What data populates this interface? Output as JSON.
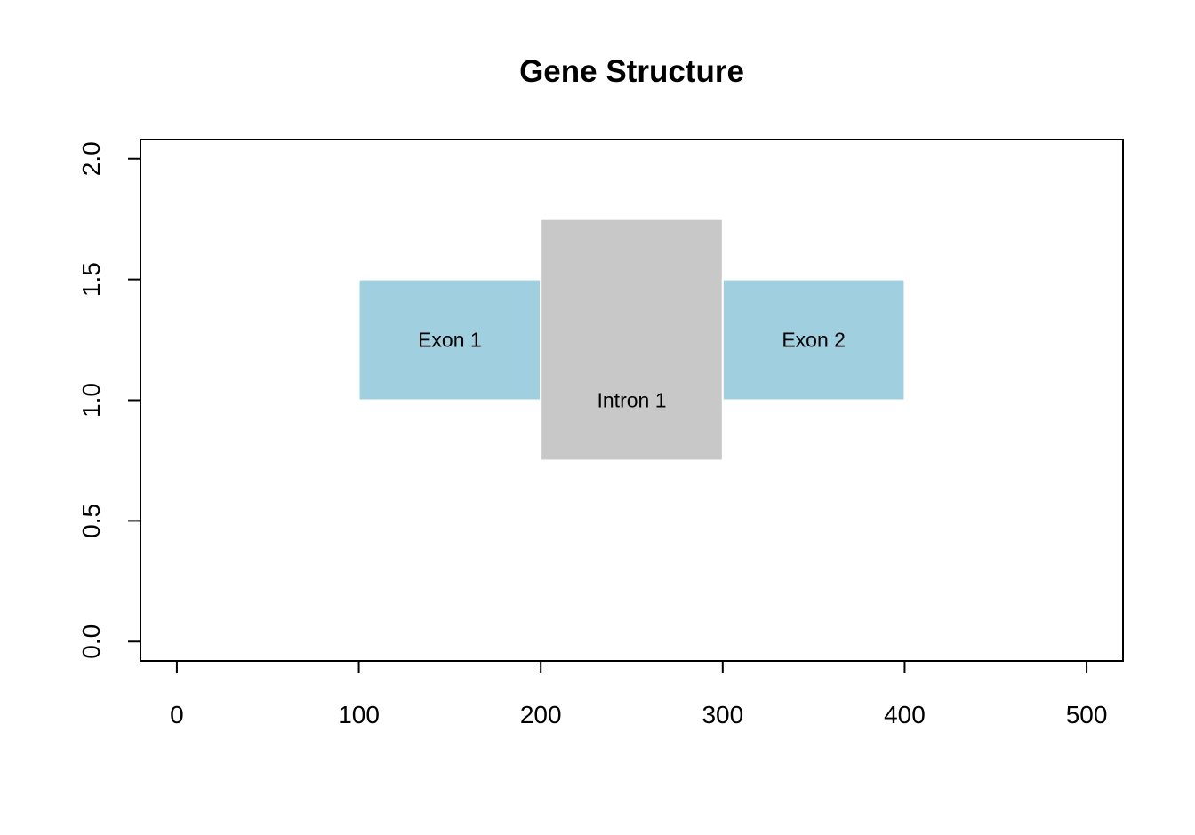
{
  "chart_data": {
    "type": "bar",
    "title": "Gene Structure",
    "xlabel": "",
    "ylabel": "",
    "xlim": [
      -20,
      520
    ],
    "ylim": [
      -0.08,
      2.08
    ],
    "x_ticks": [
      0,
      100,
      200,
      300,
      400,
      500
    ],
    "y_ticks": [
      0.0,
      0.5,
      1.0,
      1.5,
      2.0
    ],
    "x_tick_labels": [
      "0",
      "100",
      "200",
      "300",
      "400",
      "500"
    ],
    "y_tick_labels": [
      "0.0",
      "0.5",
      "1.0",
      "1.5",
      "2.0"
    ],
    "grid": false,
    "segments": [
      {
        "label": "Exon 1",
        "x0": 100,
        "x1": 200,
        "y0": 1.0,
        "y1": 1.5,
        "color": "#a0cfe0",
        "label_x": 150,
        "label_y": 1.25
      },
      {
        "label": "Intron 1",
        "x0": 200,
        "x1": 300,
        "y0": 0.75,
        "y1": 1.75,
        "color": "#c8c8c8",
        "label_x": 250,
        "label_y": 1.0
      },
      {
        "label": "Exon 2",
        "x0": 300,
        "x1": 400,
        "y0": 1.0,
        "y1": 1.5,
        "color": "#a0cfe0",
        "label_x": 350,
        "label_y": 1.25
      }
    ]
  }
}
